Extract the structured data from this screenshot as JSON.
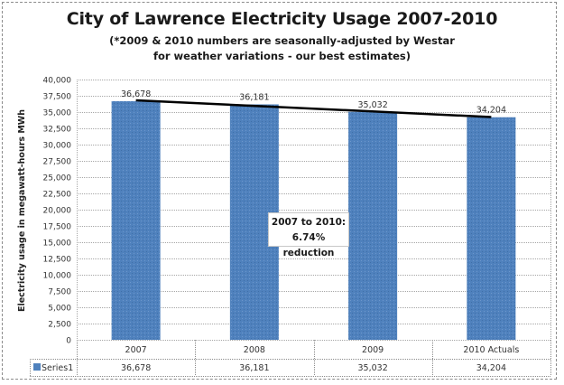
{
  "chart_data": {
    "type": "bar",
    "title": "City of Lawrence Electricity Usage 2007-2010",
    "subtitle_lines": [
      "(*2009 & 2010 numbers are seasonally-adjusted by Westar",
      "for weather variations -  our best estimates)"
    ],
    "categories": [
      "2007",
      "2008",
      "2009",
      "2010 Actuals"
    ],
    "series": [
      {
        "name": "Series1",
        "values": [
          36678,
          36181,
          35032,
          34204
        ],
        "color": "#4f81bd"
      }
    ],
    "data_labels": [
      "36,678",
      "36,181",
      "35,032",
      "34,204"
    ],
    "trendline": {
      "type": "linear",
      "color": "#000000"
    },
    "xlabel": "",
    "ylabel": "Electricity usage in megawatt-hours MWh",
    "ylim": [
      0,
      40000
    ],
    "yticks": [
      0,
      2500,
      5000,
      7500,
      10000,
      12500,
      15000,
      17500,
      20000,
      22500,
      25000,
      27500,
      30000,
      32500,
      35000,
      37500,
      40000
    ],
    "ytick_labels": [
      "0",
      "2,500",
      "5,000",
      "7,500",
      "10,000",
      "12,500",
      "15,000",
      "17,500",
      "20,000",
      "22,500",
      "25,000",
      "27,500",
      "30,000",
      "32,500",
      "35,000",
      "37,500",
      "40,000"
    ],
    "grid": true,
    "legend": "data-table",
    "annotation": {
      "line1": "2007 to 2010:",
      "line2": "6.74% reduction"
    },
    "data_table": {
      "series_label": "Series1",
      "values": [
        "36,678",
        "36,181",
        "35,032",
        "34,204"
      ]
    }
  }
}
